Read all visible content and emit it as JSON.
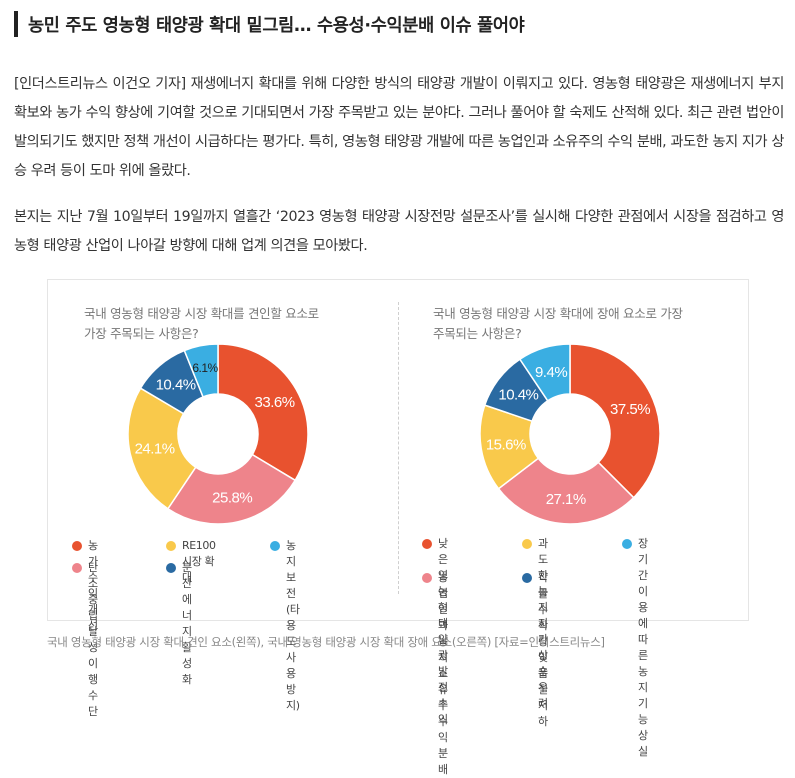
{
  "article": {
    "title": "농민 주도 영농형 태양광 확대 밑그림… 수용성·수익분배 이슈 풀어야",
    "paragraph1": "[인더스트리뉴스 이건오 기자] 재생에너지 확대를 위해 다양한 방식의 태양광 개발이 이뤄지고 있다. 영농형 태양광은 재생에너지 부지 확보와 농가 수익 향상에 기여할 것으로 기대되면서 가장 주목받고 있는 분야다. 그러나 풀어야 할 숙제도 산적해 있다. 최근 관련 법안이 발의되기도 했지만 정책 개선이 시급하다는 평가다. 특히, 영농형 태양광 개발에 따른 농업인과 소유주의 수익 분배, 과도한 농지 지가 상승 우려 등이 도마 위에 올랐다.",
    "paragraph2": "본지는 지난 7월 10일부터 19일까지 열흘간 ‘2023 영농형 태양광 시장전망 설문조사’를 실시해 다양한 관점에서 시장을 점검하고 영농형 태양광 산업이 나아갈 방향에 대해 업계 의견을 모아봤다.",
    "caption": "국내 영농형 태양광 시장 확대 견인 요소(왼쪽), 국내 영농형 태양광 시장 확대 장애 요소(오른쪽) [자료=인더스트리뉴스]"
  },
  "chart_data": [
    {
      "type": "pie",
      "title_line1": "국내 영농형 태양광 시장 확대를 견인할 요소로",
      "title_line2": "가장 주목되는 사항은?",
      "labels": [
        "농가수익 개선",
        "탄소중립 달성 이행 수단",
        "RE100 시장 확대",
        "분산에너지 활성화",
        "농지 보전 (타 용도 사용 방지)"
      ],
      "values": [
        33.6,
        25.8,
        24.1,
        10.4,
        6.1
      ],
      "display": [
        "33.6%",
        "25.8%",
        "24.1%",
        "10.4%",
        "6.1%"
      ],
      "colors": [
        "#e8522f",
        "#ee848b",
        "#f9c94b",
        "#2a6aa2",
        "#3aaee2"
      ],
      "legend": [
        {
          "label": "농가수익 개선",
          "color": "#e8522f"
        },
        {
          "label": "RE100 시장 확대",
          "color": "#f9c94b"
        },
        {
          "label": "농지 보전",
          "label2": "(타 용도 사용 방지)",
          "color": "#3aaee2"
        },
        {
          "label": "탄소중립 달성",
          "label2": "이행 수단",
          "color": "#ee848b"
        },
        {
          "label": "분산에너지 활성화",
          "color": "#2a6aa2"
        }
      ]
    },
    {
      "type": "pie",
      "title_line1": "국내 영농형 태양광 시장 확대에 장애 요소로 가장",
      "title_line2": "주목되는 사항은?",
      "labels": [
        "낮은 영농형 태양광 발전 수익",
        "농업인과 농지 소유주 수익 분배",
        "과도한 농지 지가 상승 우려",
        "작물 수확량 및 품질 저하",
        "장기간 이용에 따른 농지 기능 상실"
      ],
      "values": [
        37.5,
        27.1,
        15.6,
        10.4,
        9.4
      ],
      "display": [
        "37.5%",
        "27.1%",
        "15.6%",
        "10.4%",
        "9.4%"
      ],
      "colors": [
        "#e8522f",
        "#ee848b",
        "#f9c94b",
        "#2a6aa2",
        "#3aaee2"
      ],
      "legend": [
        {
          "label": "낮은 영농형",
          "label2": "태양광 발전 수익",
          "color": "#e8522f"
        },
        {
          "label": "과도한 농지 지가",
          "label2": "상승 우려",
          "color": "#f9c94b"
        },
        {
          "label": "장기간 이용에 따른",
          "label2": "농지 기능 상실",
          "color": "#3aaee2"
        },
        {
          "label": "농업인과 농지",
          "label2": "소유주 수익 분배",
          "color": "#ee848b"
        },
        {
          "label": "작물 수확량 및",
          "label2": "품질 저하",
          "color": "#2a6aa2"
        }
      ]
    }
  ]
}
